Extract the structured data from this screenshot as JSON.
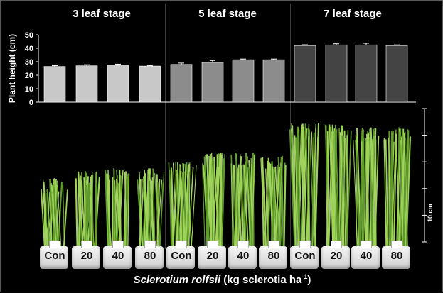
{
  "chart_data": {
    "type": "bar",
    "ylabel": "Plant height (cm)",
    "ylim": [
      0,
      50
    ],
    "yticks": [
      0,
      10,
      20,
      30,
      40,
      50
    ],
    "groups": [
      {
        "name": "3 leaf stage",
        "color": "#c8c8c8",
        "categories": [
          "Con",
          "20",
          "40",
          "80"
        ],
        "values": [
          26.5,
          27.0,
          27.5,
          26.8
        ],
        "errors": [
          0.6,
          0.8,
          0.7,
          0.4
        ]
      },
      {
        "name": "5 leaf stage",
        "color": "#8c8c8c",
        "categories": [
          "Con",
          "20",
          "40",
          "80"
        ],
        "values": [
          28.0,
          29.5,
          31.5,
          31.5
        ],
        "errors": [
          1.0,
          1.4,
          0.5,
          0.5
        ]
      },
      {
        "name": "7 leaf stage",
        "color": "#444444",
        "categories": [
          "Con",
          "20",
          "40",
          "80"
        ],
        "values": [
          42.0,
          42.5,
          42.5,
          42.0
        ],
        "errors": [
          0.6,
          0.8,
          1.2,
          0.5
        ]
      }
    ],
    "xlabel_italic": "Sclerotium rolfsii",
    "xlabel_rest": " (kg sclerotia ha",
    "xlabel_sup": "-1",
    "xlabel_end": ")"
  },
  "photo": {
    "scale_label": "10 cm",
    "pot_labels": [
      "Con",
      "20",
      "40",
      "80",
      "Con",
      "20",
      "40",
      "80",
      "Con",
      "20",
      "40",
      "80"
    ]
  },
  "colors": {
    "grass_light": "#9fd35a",
    "grass_dark": "#5e9a2a",
    "bar_outline": "#ffffff"
  }
}
